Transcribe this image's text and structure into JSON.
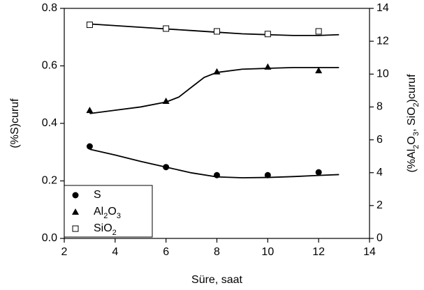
{
  "chart_data": {
    "type": "scatter",
    "xlabel": "Süre, saat",
    "ylabel": "(%S)curuf",
    "y2label": "(%Al2O3, SiO2)curuf",
    "xlim": [
      2,
      14
    ],
    "xticks": [
      2,
      4,
      6,
      8,
      10,
      12,
      14
    ],
    "ylim": [
      0,
      0.8
    ],
    "yticks": [
      {
        "value": 0,
        "label": "0.0"
      },
      0.2,
      0.4,
      0.6,
      0.8
    ],
    "y2lim": [
      0,
      14
    ],
    "y2ticks": [
      0,
      2,
      4,
      6,
      8,
      10,
      12,
      14
    ],
    "legend": "lower left",
    "series": [
      {
        "name": "S",
        "color": "#000000",
        "marker": "circle",
        "x": [
          3,
          6,
          8,
          10,
          12
        ],
        "values": [
          0.32,
          0.248,
          0.22,
          0.22,
          0.23
        ],
        "fit_x": [
          3,
          4,
          5,
          6,
          7,
          8,
          9,
          10,
          11,
          12,
          12.8
        ],
        "fit_values": [
          0.31,
          0.29,
          0.268,
          0.248,
          0.228,
          0.214,
          0.211,
          0.212,
          0.215,
          0.219,
          0.222
        ]
      },
      {
        "name": "Al2O3",
        "color": "#000000",
        "marker": "triangle",
        "axis": "y2",
        "x": [
          3,
          6,
          8,
          10,
          12
        ],
        "values": [
          7.8,
          8.36,
          10.15,
          10.44,
          10.22
        ],
        "fit_x": [
          3,
          4,
          5,
          6,
          6.5,
          7,
          7.5,
          8,
          9,
          10,
          11,
          12.8
        ],
        "fit_values": [
          7.6,
          7.8,
          8.0,
          8.3,
          8.6,
          9.2,
          9.8,
          10.1,
          10.3,
          10.35,
          10.4,
          10.4
        ]
      },
      {
        "name": "SiO2",
        "color": "#000000",
        "marker": "open-square",
        "axis": "y2",
        "x": [
          3,
          6,
          8,
          10,
          12
        ],
        "values": [
          13.0,
          12.77,
          12.6,
          12.44,
          12.6
        ],
        "fit_x": [
          3,
          4,
          5,
          6,
          7,
          8,
          9,
          10,
          11,
          12,
          12.8
        ],
        "fit_values": [
          13.05,
          12.95,
          12.85,
          12.75,
          12.65,
          12.55,
          12.45,
          12.4,
          12.35,
          12.35,
          12.4
        ]
      }
    ]
  }
}
